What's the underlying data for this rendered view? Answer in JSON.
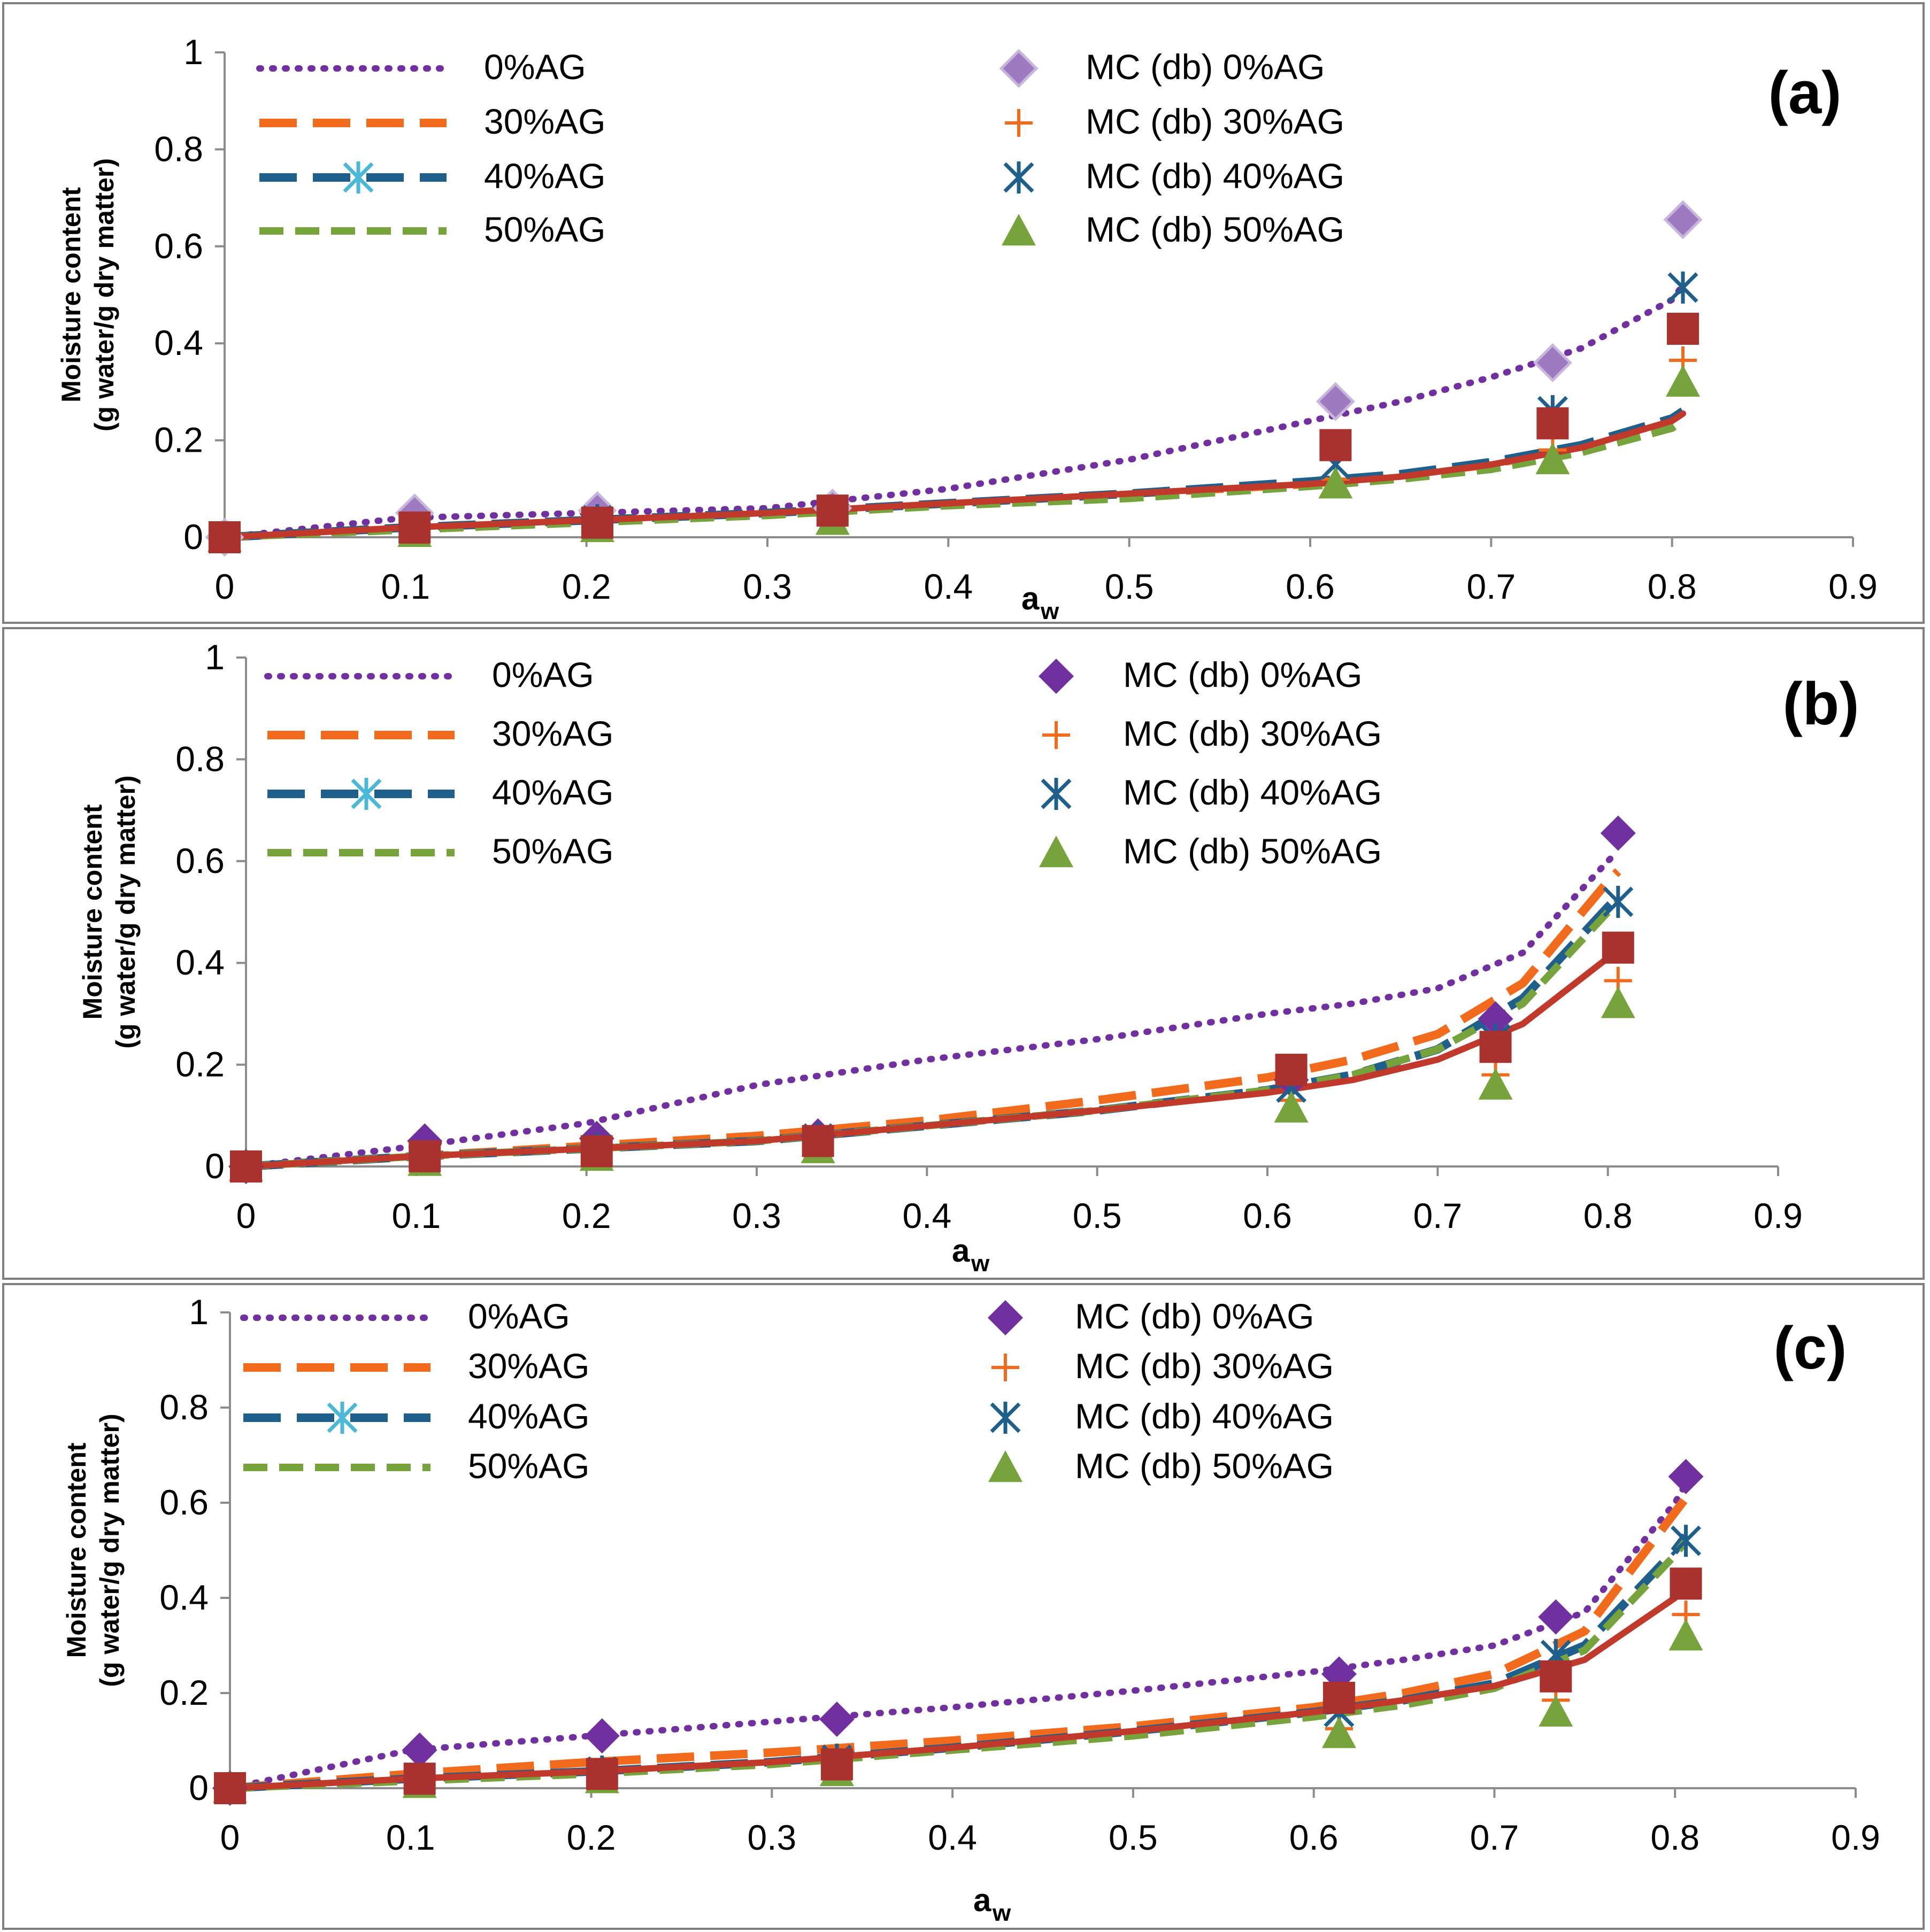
{
  "figure": {
    "y_axis_title_line1": "Moisture content",
    "y_axis_title_line2": "(g water/g dry matter)",
    "x_axis_title_main": "a",
    "x_axis_title_sub": "w",
    "legend": {
      "lines": [
        "0%AG",
        "30%AG",
        "40%AG",
        "50%AG"
      ],
      "markers": [
        "MC (db) 0%AG",
        "MC (db) 30%AG",
        "MC (db) 40%AG",
        "MC (db) 50%AG"
      ]
    },
    "colors": {
      "ag0": "#7030A0",
      "ag0_marker_a": "#9E7BC0",
      "ag30": "#F26B1D",
      "ag40": "#1F5F8B",
      "ag40_light": "#4BB8D8",
      "ag50": "#77A33C",
      "fit": "#C0392B",
      "extra_marker": "#A9322E"
    }
  },
  "chart_data": [
    {
      "panel_label": "(a)",
      "type": "line",
      "xlabel": "aw",
      "ylabel": "Moisture content (g water/g dry matter)",
      "xlim": [
        0,
        0.9
      ],
      "ylim": [
        0,
        1
      ],
      "x_ticks": [
        "0",
        "0.1",
        "0.2",
        "0.3",
        "0.4",
        "0.5",
        "0.6",
        "0.7",
        "0.8",
        "0.9"
      ],
      "y_ticks": [
        "0",
        "0.2",
        "0.4",
        "0.6",
        "0.8",
        "1"
      ],
      "points_aw": [
        0,
        0.105,
        0.206,
        0.336,
        0.614,
        0.734,
        0.806
      ],
      "measured": [
        {
          "name": "MC (db) 0%AG",
          "values": [
            0,
            0.05,
            0.055,
            0.06,
            0.28,
            0.36,
            0.655
          ]
        },
        {
          "name": "MC (db) 30%AG",
          "values": [
            0,
            0.02,
            0.03,
            0.05,
            0.12,
            0.18,
            0.365
          ]
        },
        {
          "name": "MC (db) 40%AG",
          "values": [
            0,
            0.02,
            0.035,
            0.055,
            0.15,
            0.26,
            0.515
          ]
        },
        {
          "name": "MC (db) 50%AG",
          "values": [
            0,
            0.01,
            0.02,
            0.035,
            0.11,
            0.16,
            0.32
          ]
        },
        {
          "name": "",
          "values": [
            0,
            0.02,
            0.03,
            0.055,
            0.19,
            0.235,
            0.43
          ]
        }
      ],
      "fitted": [
        {
          "name": "0%AG",
          "x": [
            0,
            0.1,
            0.2,
            0.3,
            0.4,
            0.5,
            0.6,
            0.65,
            0.7,
            0.75,
            0.8,
            0.806
          ],
          "values": [
            0,
            0.04,
            0.05,
            0.06,
            0.1,
            0.16,
            0.24,
            0.28,
            0.33,
            0.39,
            0.49,
            0.52
          ]
        },
        {
          "name": "30%AG",
          "x": [
            0,
            0.1,
            0.2,
            0.3,
            0.4,
            0.5,
            0.6,
            0.65,
            0.7,
            0.75,
            0.8,
            0.806
          ],
          "values": [
            0,
            0.02,
            0.035,
            0.05,
            0.07,
            0.09,
            0.11,
            0.13,
            0.15,
            0.19,
            0.245,
            0.26
          ]
        },
        {
          "name": "40%AG",
          "x": [
            0,
            0.1,
            0.2,
            0.3,
            0.4,
            0.5,
            0.6,
            0.65,
            0.7,
            0.75,
            0.8,
            0.806
          ],
          "values": [
            0,
            0.02,
            0.035,
            0.05,
            0.07,
            0.09,
            0.115,
            0.13,
            0.155,
            0.19,
            0.245,
            0.26
          ]
        },
        {
          "name": "50%AG",
          "x": [
            0,
            0.1,
            0.2,
            0.3,
            0.4,
            0.5,
            0.6,
            0.65,
            0.7,
            0.75,
            0.8,
            0.806
          ],
          "values": [
            0,
            0.015,
            0.03,
            0.045,
            0.065,
            0.08,
            0.105,
            0.12,
            0.14,
            0.175,
            0.225,
            0.24
          ]
        },
        {
          "name": "",
          "x": [
            0,
            0.1,
            0.2,
            0.3,
            0.4,
            0.5,
            0.6,
            0.65,
            0.7,
            0.75,
            0.8,
            0.806
          ],
          "values": [
            0,
            0.02,
            0.035,
            0.05,
            0.07,
            0.09,
            0.11,
            0.125,
            0.15,
            0.185,
            0.24,
            0.255
          ]
        }
      ]
    },
    {
      "panel_label": "(b)",
      "type": "line",
      "xlabel": "aw",
      "ylabel": "Moisture content (g water/g dry matter)",
      "xlim": [
        0,
        0.9
      ],
      "ylim": [
        0,
        1
      ],
      "x_ticks": [
        "0",
        "0.1",
        "0.2",
        "0.3",
        "0.4",
        "0.5",
        "0.6",
        "0.7",
        "0.8",
        "0.9"
      ],
      "y_ticks": [
        "0",
        "0.2",
        "0.4",
        "0.6",
        "0.8",
        "1"
      ],
      "points_aw": [
        0,
        0.105,
        0.206,
        0.336,
        0.614,
        0.734,
        0.806
      ],
      "measured": [
        {
          "name": "MC (db) 0%AG",
          "values": [
            0,
            0.05,
            0.055,
            0.06,
            0.17,
            0.29,
            0.655
          ]
        },
        {
          "name": "MC (db) 30%AG",
          "values": [
            0,
            0.02,
            0.03,
            0.05,
            0.13,
            0.18,
            0.365
          ]
        },
        {
          "name": "MC (db) 40%AG",
          "values": [
            0,
            0.02,
            0.035,
            0.055,
            0.155,
            0.25,
            0.52
          ]
        },
        {
          "name": "MC (db) 50%AG",
          "values": [
            0,
            0.01,
            0.02,
            0.035,
            0.115,
            0.16,
            0.32
          ]
        },
        {
          "name": "",
          "values": [
            0,
            0.02,
            0.03,
            0.05,
            0.19,
            0.235,
            0.43
          ]
        }
      ],
      "fitted": [
        {
          "name": "0%AG",
          "x": [
            0,
            0.1,
            0.2,
            0.3,
            0.4,
            0.5,
            0.6,
            0.65,
            0.7,
            0.75,
            0.8,
            0.806
          ],
          "values": [
            0,
            0.04,
            0.085,
            0.16,
            0.21,
            0.25,
            0.3,
            0.32,
            0.35,
            0.42,
            0.6,
            0.62
          ]
        },
        {
          "name": "30%AG",
          "x": [
            0,
            0.1,
            0.2,
            0.3,
            0.4,
            0.5,
            0.6,
            0.65,
            0.7,
            0.75,
            0.8,
            0.806
          ],
          "values": [
            0,
            0.02,
            0.04,
            0.06,
            0.09,
            0.13,
            0.175,
            0.21,
            0.26,
            0.36,
            0.56,
            0.58
          ]
        },
        {
          "name": "40%AG",
          "x": [
            0,
            0.1,
            0.2,
            0.3,
            0.4,
            0.5,
            0.6,
            0.65,
            0.7,
            0.75,
            0.8,
            0.806
          ],
          "values": [
            0,
            0.02,
            0.035,
            0.05,
            0.08,
            0.11,
            0.15,
            0.18,
            0.23,
            0.33,
            0.51,
            0.53
          ]
        },
        {
          "name": "50%AG",
          "x": [
            0,
            0.1,
            0.2,
            0.3,
            0.4,
            0.5,
            0.6,
            0.65,
            0.7,
            0.75,
            0.8,
            0.806
          ],
          "values": [
            0,
            0.02,
            0.035,
            0.05,
            0.08,
            0.11,
            0.15,
            0.18,
            0.23,
            0.32,
            0.5,
            0.52
          ]
        },
        {
          "name": "",
          "x": [
            0,
            0.1,
            0.2,
            0.3,
            0.4,
            0.5,
            0.6,
            0.65,
            0.7,
            0.75,
            0.8,
            0.806
          ],
          "values": [
            0,
            0.02,
            0.035,
            0.05,
            0.08,
            0.11,
            0.145,
            0.17,
            0.21,
            0.28,
            0.41,
            0.43
          ]
        }
      ]
    },
    {
      "panel_label": "(c)",
      "type": "line",
      "xlabel": "aw",
      "ylabel": "Moisture content (g water/g dry matter)",
      "xlim": [
        0,
        0.9
      ],
      "ylim": [
        0,
        1
      ],
      "x_ticks": [
        "0",
        "0.1",
        "0.2",
        "0.3",
        "0.4",
        "0.5",
        "0.6",
        "0.7",
        "0.8",
        "0.9"
      ],
      "y_ticks": [
        "0",
        "0.2",
        "0.4",
        "0.6",
        "0.8",
        "1"
      ],
      "points_aw": [
        0,
        0.105,
        0.206,
        0.336,
        0.614,
        0.734,
        0.806
      ],
      "measured": [
        {
          "name": "MC (db) 0%AG",
          "values": [
            0,
            0.08,
            0.11,
            0.145,
            0.24,
            0.36,
            0.655
          ]
        },
        {
          "name": "MC (db) 30%AG",
          "values": [
            0,
            0.02,
            0.03,
            0.05,
            0.125,
            0.185,
            0.365
          ]
        },
        {
          "name": "MC (db) 40%AG",
          "values": [
            0,
            0.02,
            0.035,
            0.06,
            0.16,
            0.28,
            0.52
          ]
        },
        {
          "name": "MC (db) 50%AG",
          "values": [
            0,
            0.01,
            0.02,
            0.035,
            0.115,
            0.16,
            0.32
          ]
        },
        {
          "name": "",
          "values": [
            0,
            0.02,
            0.03,
            0.05,
            0.19,
            0.235,
            0.43
          ]
        }
      ],
      "fitted": [
        {
          "name": "0%AG",
          "x": [
            0,
            0.1,
            0.2,
            0.3,
            0.4,
            0.5,
            0.6,
            0.65,
            0.7,
            0.75,
            0.8,
            0.806
          ],
          "values": [
            0,
            0.08,
            0.11,
            0.14,
            0.17,
            0.205,
            0.245,
            0.27,
            0.3,
            0.37,
            0.6,
            0.64
          ]
        },
        {
          "name": "30%AG",
          "x": [
            0,
            0.1,
            0.2,
            0.3,
            0.4,
            0.5,
            0.6,
            0.65,
            0.7,
            0.75,
            0.8,
            0.806
          ],
          "values": [
            0,
            0.03,
            0.055,
            0.075,
            0.1,
            0.13,
            0.17,
            0.2,
            0.24,
            0.33,
            0.58,
            0.61
          ]
        },
        {
          "name": "40%AG",
          "x": [
            0,
            0.1,
            0.2,
            0.3,
            0.4,
            0.5,
            0.6,
            0.65,
            0.7,
            0.75,
            0.8,
            0.806
          ],
          "values": [
            0,
            0.02,
            0.035,
            0.055,
            0.085,
            0.12,
            0.16,
            0.185,
            0.22,
            0.3,
            0.5,
            0.53
          ]
        },
        {
          "name": "50%AG",
          "x": [
            0,
            0.1,
            0.2,
            0.3,
            0.4,
            0.5,
            0.6,
            0.65,
            0.7,
            0.75,
            0.8,
            0.806
          ],
          "values": [
            0,
            0.015,
            0.03,
            0.05,
            0.08,
            0.11,
            0.15,
            0.175,
            0.21,
            0.29,
            0.49,
            0.52
          ]
        },
        {
          "name": "",
          "x": [
            0,
            0.1,
            0.2,
            0.3,
            0.4,
            0.5,
            0.6,
            0.65,
            0.7,
            0.75,
            0.8,
            0.806
          ],
          "values": [
            0,
            0.02,
            0.035,
            0.055,
            0.085,
            0.12,
            0.16,
            0.185,
            0.215,
            0.27,
            0.4,
            0.43
          ]
        }
      ]
    }
  ]
}
